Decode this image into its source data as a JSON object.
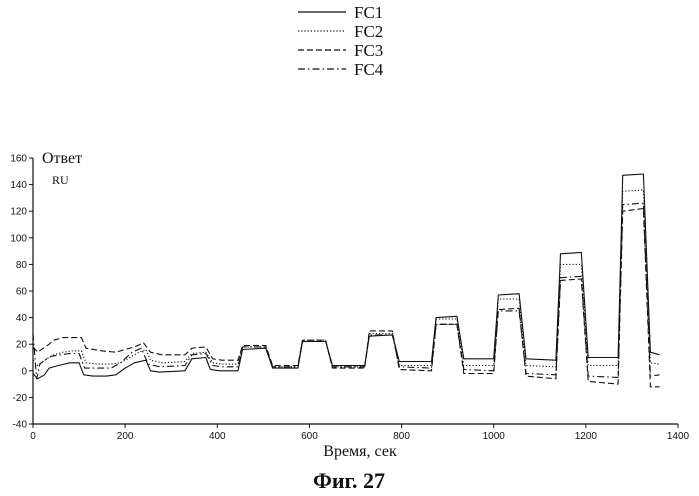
{
  "caption": "Фиг. 27",
  "chart_data": {
    "type": "line",
    "xlabel": "Время, сек",
    "ylabel": "Ответ",
    "ylabel_units": "RU",
    "xlim": [
      0,
      1400
    ],
    "ylim": [
      -40,
      160
    ],
    "xticks": [
      0,
      200,
      400,
      600,
      800,
      1000,
      1200,
      1400
    ],
    "yticks": [
      -40,
      -20,
      0,
      20,
      40,
      60,
      80,
      100,
      120,
      140,
      160
    ],
    "grid": false,
    "legend_position": "top-center",
    "series": [
      {
        "name": "FC1",
        "line_style": "solid",
        "color": "#111111",
        "points": [
          [
            0,
            -2
          ],
          [
            10,
            -6
          ],
          [
            25,
            -3
          ],
          [
            35,
            2
          ],
          [
            55,
            4
          ],
          [
            80,
            6
          ],
          [
            100,
            6
          ],
          [
            110,
            -3
          ],
          [
            130,
            -4
          ],
          [
            160,
            -4
          ],
          [
            180,
            -3
          ],
          [
            200,
            2
          ],
          [
            220,
            6
          ],
          [
            245,
            8
          ],
          [
            255,
            0
          ],
          [
            275,
            -1
          ],
          [
            330,
            0
          ],
          [
            345,
            9
          ],
          [
            375,
            10
          ],
          [
            385,
            1
          ],
          [
            405,
            0
          ],
          [
            445,
            0
          ],
          [
            455,
            16
          ],
          [
            505,
            17
          ],
          [
            520,
            2
          ],
          [
            575,
            2
          ],
          [
            585,
            22
          ],
          [
            635,
            22
          ],
          [
            650,
            4
          ],
          [
            720,
            4
          ],
          [
            730,
            26
          ],
          [
            780,
            27
          ],
          [
            795,
            7
          ],
          [
            865,
            7
          ],
          [
            875,
            40
          ],
          [
            920,
            41
          ],
          [
            935,
            9
          ],
          [
            1000,
            9
          ],
          [
            1010,
            57
          ],
          [
            1055,
            58
          ],
          [
            1070,
            9
          ],
          [
            1135,
            8
          ],
          [
            1145,
            88
          ],
          [
            1190,
            89
          ],
          [
            1205,
            10
          ],
          [
            1270,
            10
          ],
          [
            1280,
            147
          ],
          [
            1325,
            148
          ],
          [
            1340,
            14
          ],
          [
            1360,
            12
          ]
        ]
      },
      {
        "name": "FC2",
        "line_style": "dotted",
        "color": "#111111",
        "points": [
          [
            0,
            8
          ],
          [
            10,
            4
          ],
          [
            30,
            9
          ],
          [
            45,
            12
          ],
          [
            65,
            14
          ],
          [
            85,
            15
          ],
          [
            105,
            15
          ],
          [
            115,
            6
          ],
          [
            140,
            5
          ],
          [
            170,
            5
          ],
          [
            190,
            6
          ],
          [
            210,
            10
          ],
          [
            230,
            14
          ],
          [
            245,
            16
          ],
          [
            255,
            8
          ],
          [
            280,
            6
          ],
          [
            330,
            7
          ],
          [
            345,
            13
          ],
          [
            375,
            14
          ],
          [
            390,
            6
          ],
          [
            410,
            5
          ],
          [
            445,
            5
          ],
          [
            455,
            18
          ],
          [
            505,
            18
          ],
          [
            520,
            3
          ],
          [
            575,
            3
          ],
          [
            585,
            23
          ],
          [
            635,
            23
          ],
          [
            650,
            3
          ],
          [
            720,
            3
          ],
          [
            730,
            28
          ],
          [
            780,
            28
          ],
          [
            795,
            4
          ],
          [
            865,
            4
          ],
          [
            875,
            39
          ],
          [
            920,
            39
          ],
          [
            935,
            4
          ],
          [
            1000,
            4
          ],
          [
            1010,
            54
          ],
          [
            1055,
            54
          ],
          [
            1070,
            4
          ],
          [
            1135,
            3
          ],
          [
            1145,
            80
          ],
          [
            1190,
            80
          ],
          [
            1205,
            4
          ],
          [
            1270,
            4
          ],
          [
            1280,
            135
          ],
          [
            1325,
            136
          ],
          [
            1340,
            6
          ],
          [
            1360,
            5
          ]
        ]
      },
      {
        "name": "FC3",
        "line_style": "dashed",
        "color": "#111111",
        "points": [
          [
            0,
            18
          ],
          [
            10,
            14
          ],
          [
            35,
            20
          ],
          [
            45,
            23
          ],
          [
            65,
            25
          ],
          [
            85,
            25
          ],
          [
            105,
            25
          ],
          [
            115,
            17
          ],
          [
            150,
            15
          ],
          [
            180,
            14
          ],
          [
            200,
            16
          ],
          [
            220,
            18
          ],
          [
            240,
            21
          ],
          [
            255,
            14
          ],
          [
            280,
            12
          ],
          [
            330,
            12
          ],
          [
            345,
            17
          ],
          [
            375,
            18
          ],
          [
            390,
            9
          ],
          [
            410,
            8
          ],
          [
            445,
            8
          ],
          [
            455,
            19
          ],
          [
            505,
            19
          ],
          [
            520,
            4
          ],
          [
            575,
            4
          ],
          [
            585,
            23
          ],
          [
            635,
            23
          ],
          [
            650,
            2
          ],
          [
            720,
            2
          ],
          [
            730,
            30
          ],
          [
            780,
            30
          ],
          [
            795,
            1
          ],
          [
            865,
            0
          ],
          [
            875,
            35
          ],
          [
            920,
            35
          ],
          [
            935,
            -2
          ],
          [
            1000,
            -2
          ],
          [
            1010,
            46
          ],
          [
            1055,
            47
          ],
          [
            1070,
            -4
          ],
          [
            1135,
            -6
          ],
          [
            1145,
            68
          ],
          [
            1190,
            69
          ],
          [
            1205,
            -8
          ],
          [
            1270,
            -10
          ],
          [
            1280,
            120
          ],
          [
            1325,
            122
          ],
          [
            1340,
            -12
          ],
          [
            1360,
            -12
          ]
        ]
      },
      {
        "name": "FC4",
        "line_style": "dashdot",
        "color": "#111111",
        "points": [
          [
            0,
            28
          ],
          [
            8,
            -6
          ],
          [
            15,
            5
          ],
          [
            25,
            8
          ],
          [
            40,
            11
          ],
          [
            60,
            12
          ],
          [
            80,
            13
          ],
          [
            100,
            13
          ],
          [
            112,
            2
          ],
          [
            140,
            2
          ],
          [
            170,
            2
          ],
          [
            190,
            6
          ],
          [
            215,
            14
          ],
          [
            235,
            17
          ],
          [
            250,
            5
          ],
          [
            275,
            3
          ],
          [
            330,
            4
          ],
          [
            345,
            12
          ],
          [
            375,
            13
          ],
          [
            390,
            4
          ],
          [
            410,
            3
          ],
          [
            445,
            3
          ],
          [
            455,
            18
          ],
          [
            505,
            18
          ],
          [
            520,
            3
          ],
          [
            575,
            3
          ],
          [
            585,
            22
          ],
          [
            635,
            22
          ],
          [
            650,
            3
          ],
          [
            720,
            3
          ],
          [
            730,
            27
          ],
          [
            780,
            27
          ],
          [
            795,
            3
          ],
          [
            865,
            2
          ],
          [
            875,
            35
          ],
          [
            920,
            35
          ],
          [
            935,
            1
          ],
          [
            1000,
            0
          ],
          [
            1010,
            45
          ],
          [
            1055,
            45
          ],
          [
            1070,
            -2
          ],
          [
            1135,
            -3
          ],
          [
            1145,
            70
          ],
          [
            1190,
            71
          ],
          [
            1205,
            -4
          ],
          [
            1270,
            -5
          ],
          [
            1280,
            125
          ],
          [
            1325,
            126
          ],
          [
            1340,
            -4
          ],
          [
            1360,
            -3
          ]
        ]
      }
    ]
  }
}
